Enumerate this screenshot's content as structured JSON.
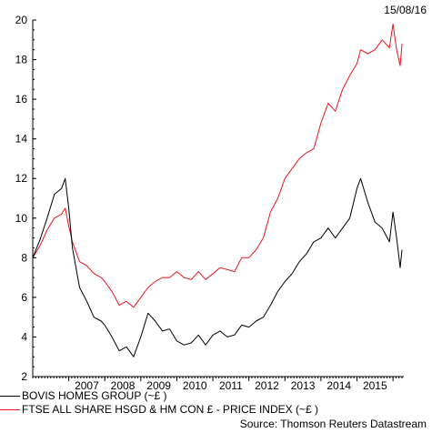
{
  "header": {
    "date": "15/08/16"
  },
  "source": "Source: Thomson Reuters Datastream",
  "colors": {
    "series0": "#000000",
    "series1": "#e8141c"
  },
  "chart_data": {
    "type": "line",
    "title": "",
    "xlabel": "",
    "ylabel": "",
    "ylim": [
      2,
      20
    ],
    "xlim": [
      2006.0,
      2016.3
    ],
    "yticks": [
      2,
      4,
      6,
      8,
      10,
      12,
      14,
      16,
      18,
      20
    ],
    "xtick_labels": [
      "2007",
      "2008",
      "2009",
      "2010",
      "2011",
      "2012",
      "2013",
      "2014",
      "2015"
    ],
    "grid": false,
    "legend": "bottom-left",
    "series": [
      {
        "name": "BOVIS HOMES GROUP (~£ )",
        "x": [
          2006.0,
          2006.2,
          2006.4,
          2006.6,
          2006.8,
          2006.9,
          2007.0,
          2007.1,
          2007.3,
          2007.5,
          2007.7,
          2007.9,
          2008.0,
          2008.2,
          2008.4,
          2008.6,
          2008.8,
          2009.0,
          2009.2,
          2009.4,
          2009.6,
          2009.8,
          2010.0,
          2010.2,
          2010.4,
          2010.6,
          2010.8,
          2011.0,
          2011.2,
          2011.4,
          2011.6,
          2011.8,
          2012.0,
          2012.2,
          2012.4,
          2012.6,
          2012.8,
          2013.0,
          2013.2,
          2013.4,
          2013.6,
          2013.8,
          2014.0,
          2014.2,
          2014.4,
          2014.6,
          2014.8,
          2015.0,
          2015.1,
          2015.3,
          2015.5,
          2015.7,
          2015.9,
          2016.0,
          2016.1,
          2016.2,
          2016.25
        ],
        "values": [
          8.0,
          8.9,
          10.0,
          11.2,
          11.5,
          12.0,
          10.5,
          8.5,
          6.5,
          5.8,
          5.0,
          4.8,
          4.6,
          4.0,
          3.3,
          3.5,
          3.0,
          4.0,
          5.2,
          4.8,
          4.3,
          4.4,
          3.8,
          3.6,
          3.7,
          4.1,
          3.6,
          4.1,
          4.3,
          4.0,
          4.1,
          4.6,
          4.5,
          4.8,
          5.0,
          5.6,
          6.3,
          6.8,
          7.2,
          7.8,
          8.2,
          8.8,
          9.0,
          9.5,
          9.0,
          9.5,
          10.0,
          11.5,
          12.0,
          10.8,
          9.8,
          9.5,
          8.8,
          10.3,
          9.0,
          7.5,
          8.4
        ]
      },
      {
        "name": "FTSE ALL SHARE HSGD & HM CON £ - PRICE INDEX (~£ )",
        "x": [
          2006.0,
          2006.2,
          2006.4,
          2006.6,
          2006.8,
          2006.9,
          2007.0,
          2007.1,
          2007.3,
          2007.5,
          2007.7,
          2007.9,
          2008.0,
          2008.2,
          2008.4,
          2008.6,
          2008.8,
          2009.0,
          2009.2,
          2009.4,
          2009.6,
          2009.8,
          2010.0,
          2010.2,
          2010.4,
          2010.6,
          2010.8,
          2011.0,
          2011.2,
          2011.4,
          2011.6,
          2011.8,
          2012.0,
          2012.2,
          2012.4,
          2012.6,
          2012.8,
          2013.0,
          2013.2,
          2013.4,
          2013.6,
          2013.8,
          2014.0,
          2014.2,
          2014.4,
          2014.6,
          2014.8,
          2015.0,
          2015.1,
          2015.3,
          2015.5,
          2015.7,
          2015.9,
          2016.0,
          2016.1,
          2016.2,
          2016.25
        ],
        "values": [
          8.0,
          8.6,
          9.4,
          10.0,
          10.2,
          10.5,
          9.6,
          8.8,
          7.8,
          7.6,
          7.2,
          7.0,
          6.8,
          6.3,
          5.6,
          5.8,
          5.5,
          6.0,
          6.5,
          6.8,
          7.0,
          7.0,
          7.3,
          7.0,
          6.9,
          7.3,
          6.9,
          7.2,
          7.5,
          7.4,
          7.3,
          8.0,
          8.0,
          8.4,
          9.0,
          10.3,
          11.0,
          12.0,
          12.5,
          13.0,
          13.3,
          13.5,
          14.8,
          15.8,
          15.4,
          16.5,
          17.2,
          17.8,
          18.5,
          18.3,
          18.5,
          19.0,
          18.6,
          19.8,
          18.5,
          17.7,
          18.8
        ]
      }
    ]
  }
}
